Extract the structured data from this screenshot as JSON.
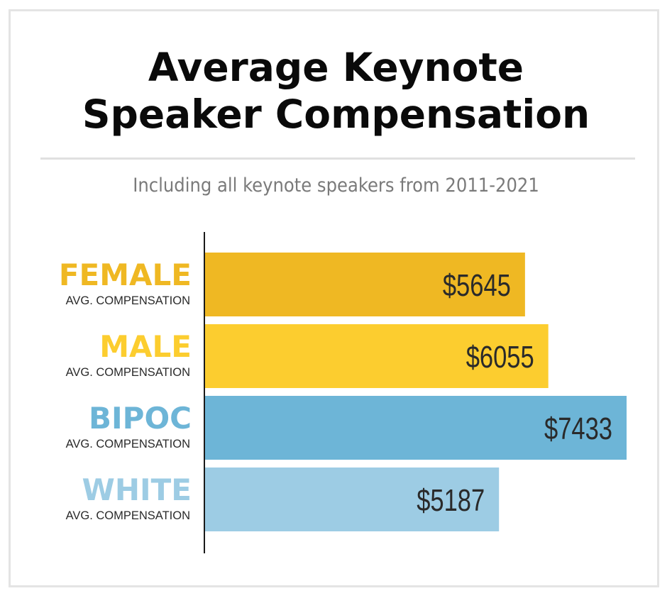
{
  "chart_data": {
    "type": "bar",
    "orientation": "horizontal",
    "title": "Average Keynote Speaker Compensation",
    "title_lines": [
      "Average Keynote",
      "Speaker Compensation"
    ],
    "subtitle": "Including all keynote speakers from 2011-2021",
    "categories": [
      "FEMALE",
      "MALE",
      "BIPOC",
      "WHITE"
    ],
    "category_sublabel": "AVG. COMPENSATION",
    "values": [
      5645,
      6055,
      7433,
      5187
    ],
    "value_labels": [
      "$5645",
      "$6055",
      "$7433",
      "$5187"
    ],
    "colors": [
      "#efb823",
      "#fccd2f",
      "#6db5d7",
      "#9dcce4"
    ],
    "xlim": [
      0,
      7433
    ],
    "grid": false,
    "legend": "none"
  }
}
